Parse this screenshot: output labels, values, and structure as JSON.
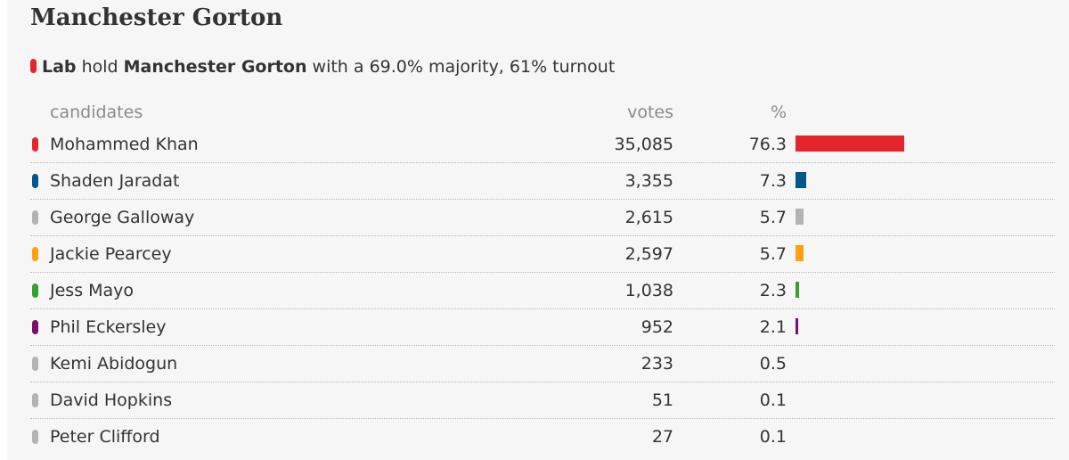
{
  "title": "Manchester Gorton",
  "summary": {
    "party": "Lab",
    "hold_text": " hold ",
    "constituency": "Manchester Gorton",
    "rest": " with a 69.0% majority, 61% turnout",
    "party_color": "#e4262c"
  },
  "headers": {
    "candidates": "candidates",
    "votes": "votes",
    "percent": "%"
  },
  "candidates": [
    {
      "name": "Mohammed Khan",
      "votes": "35,085",
      "percent": "76.3",
      "pct_value": 76.3,
      "color": "#e4262c",
      "show_bar": true
    },
    {
      "name": "Shaden Jaradat",
      "votes": "3,355",
      "percent": "7.3",
      "pct_value": 7.3,
      "color": "#005789",
      "show_bar": true
    },
    {
      "name": "George Galloway",
      "votes": "2,615",
      "percent": "5.7",
      "pct_value": 5.7,
      "color": "#b3b3b3",
      "show_bar": true
    },
    {
      "name": "Jackie Pearcey",
      "votes": "2,597",
      "percent": "5.7",
      "pct_value": 5.7,
      "color": "#ffa011",
      "show_bar": true
    },
    {
      "name": "Jess Mayo",
      "votes": "1,038",
      "percent": "2.3",
      "pct_value": 2.3,
      "color": "#33a22b",
      "show_bar": true
    },
    {
      "name": "Phil Eckersley",
      "votes": "952",
      "percent": "2.1",
      "pct_value": 2.1,
      "color": "#7b0e6a",
      "show_bar": true
    },
    {
      "name": "Kemi Abidogun",
      "votes": "233",
      "percent": "0.5",
      "pct_value": 0.5,
      "color": "#b3b3b3",
      "show_bar": false
    },
    {
      "name": "David Hopkins",
      "votes": "51",
      "percent": "0.1",
      "pct_value": 0.1,
      "color": "#b3b3b3",
      "show_bar": false
    },
    {
      "name": "Peter Clifford",
      "votes": "27",
      "percent": "0.1",
      "pct_value": 0.1,
      "color": "#b3b3b3",
      "show_bar": false
    }
  ]
}
